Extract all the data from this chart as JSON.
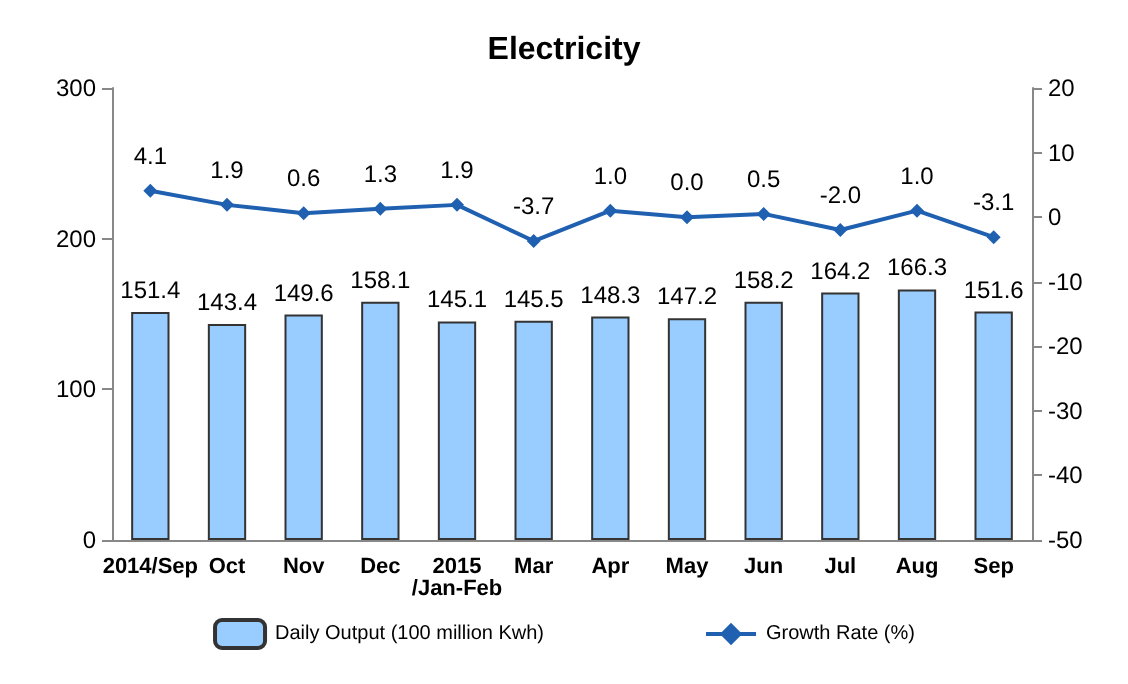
{
  "chart_data": {
    "type": "bar",
    "title": "Electricity",
    "categories": [
      "2014/Sep",
      "Oct",
      "Nov",
      "Dec",
      "2015\n/Jan-Feb",
      "Mar",
      "Apr",
      "May",
      "Jun",
      "Jul",
      "Aug",
      "Sep"
    ],
    "series": [
      {
        "name": "Daily Output (100 million Kwh)",
        "color": "#99ccff",
        "values": [
          151.4,
          143.4,
          149.6,
          158.1,
          145.1,
          145.5,
          148.3,
          147.2,
          158.2,
          164.2,
          166.3,
          151.6
        ],
        "value_labels": [
          "151.4",
          "143.4",
          "149.6",
          "158.1",
          "145.1",
          "145.5",
          "148.3",
          "147.2",
          "158.2",
          "164.2",
          "166.3",
          "151.6"
        ]
      },
      {
        "name": "Growth Rate (%)",
        "type": "line",
        "axis": "y2",
        "color": "#2060b0",
        "marker": "diamond",
        "values": [
          4.1,
          1.9,
          0.6,
          1.3,
          1.9,
          -3.7,
          1.0,
          0.0,
          0.5,
          -2.0,
          1.0,
          -3.1
        ],
        "value_labels": [
          "4.1",
          "1.9",
          "0.6",
          "1.3",
          "1.9",
          "-3.7",
          "1.0",
          "0.0",
          "0.5",
          "-2.0",
          "1.0",
          "-3.1"
        ]
      }
    ],
    "ylim": [
      0,
      300
    ],
    "yticks": [
      0,
      100,
      200,
      300
    ],
    "y2lim": [
      -50,
      20
    ],
    "y2ticks": [
      -50,
      -40,
      -30,
      -20,
      -10,
      0,
      10,
      20
    ],
    "legend": "bottom",
    "grid": false
  }
}
